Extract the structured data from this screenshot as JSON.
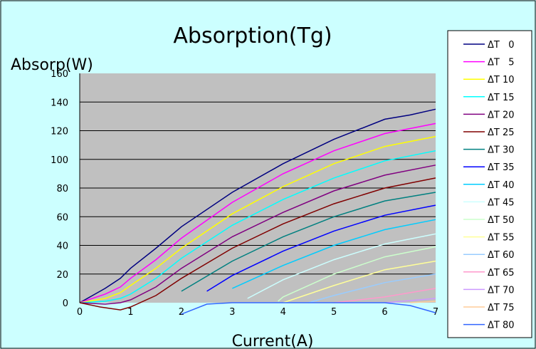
{
  "chart_data": {
    "type": "line",
    "title": "Absorption(Tg)",
    "xlabel": "Current(A)",
    "ylabel": "Absorp(W)",
    "xlim": [
      0,
      7
    ],
    "ylim": [
      0,
      160
    ],
    "xticks": [
      0,
      1,
      2,
      3,
      4,
      5,
      6,
      7
    ],
    "yticks": [
      0,
      20,
      40,
      60,
      80,
      100,
      120,
      140,
      160
    ],
    "grid": "horizontal",
    "legend_position": "right",
    "plot_background": "#c0c0c0",
    "series": [
      {
        "name": "ΔT   0",
        "color": "#000080",
        "x": [
          0,
          0.5,
          0.8,
          1,
          1.5,
          2,
          3,
          4,
          5,
          6,
          6.5,
          7
        ],
        "y": [
          0,
          10,
          17,
          24,
          38,
          53,
          77,
          97,
          114,
          128,
          131,
          135
        ]
      },
      {
        "name": "ΔT   5",
        "color": "#ff00ff",
        "x": [
          0,
          0.5,
          0.8,
          1,
          1.5,
          2,
          3,
          4,
          5,
          6,
          7
        ],
        "y": [
          0,
          6,
          11,
          17,
          30,
          45,
          70,
          90,
          106,
          118,
          125
        ]
      },
      {
        "name": "ΔT 10",
        "color": "#ffff00",
        "x": [
          0,
          0.5,
          0.8,
          1,
          1.5,
          2,
          3,
          4,
          5,
          6,
          7
        ],
        "y": [
          0,
          3,
          7,
          12,
          24,
          38,
          62,
          81,
          97,
          109,
          116
        ]
      },
      {
        "name": "ΔT 15",
        "color": "#00ffff",
        "x": [
          0,
          0.5,
          0.8,
          1,
          1.5,
          2,
          3,
          4,
          5,
          6,
          7
        ],
        "y": [
          0,
          1,
          3,
          6,
          17,
          31,
          54,
          72,
          87,
          99,
          106
        ]
      },
      {
        "name": "ΔT 20",
        "color": "#800080",
        "x": [
          0,
          0.5,
          0.8,
          1,
          1.5,
          2,
          3,
          4,
          5,
          6,
          7
        ],
        "y": [
          0,
          -1,
          0,
          2,
          11,
          24,
          46,
          63,
          78,
          89,
          96
        ]
      },
      {
        "name": "ΔT 25",
        "color": "#800000",
        "x": [
          0,
          0.4,
          0.8,
          1,
          1.5,
          2,
          3,
          4,
          5,
          6,
          7
        ],
        "y": [
          0,
          -3,
          -5,
          -3,
          5,
          17,
          38,
          55,
          69,
          80,
          87
        ]
      },
      {
        "name": "ΔT 30",
        "color": "#008080",
        "x": [
          2,
          3,
          4,
          5,
          6,
          7
        ],
        "y": [
          8,
          29,
          46,
          60,
          71,
          77
        ]
      },
      {
        "name": "ΔT 35",
        "color": "#0000ff",
        "x": [
          2.5,
          3,
          4,
          5,
          6,
          7
        ],
        "y": [
          8,
          19,
          36,
          50,
          61,
          68
        ]
      },
      {
        "name": "ΔT 40",
        "color": "#00ccff",
        "x": [
          3,
          4,
          5,
          6,
          7
        ],
        "y": [
          10,
          26,
          40,
          51,
          58
        ]
      },
      {
        "name": "ΔT 45",
        "color": "#ccffff",
        "x": [
          3.3,
          4,
          5,
          6,
          7
        ],
        "y": [
          3,
          16,
          30,
          41,
          48
        ]
      },
      {
        "name": "ΔT 50",
        "color": "#ccffcc",
        "x": [
          3.9,
          4,
          5,
          6,
          7
        ],
        "y": [
          1,
          4,
          20,
          32,
          39
        ]
      },
      {
        "name": "ΔT 55",
        "color": "#ffff99",
        "x": [
          4,
          5,
          6,
          7
        ],
        "y": [
          0,
          12,
          23,
          29
        ]
      },
      {
        "name": "ΔT 60",
        "color": "#99ccff",
        "x": [
          4.5,
          5,
          6,
          7
        ],
        "y": [
          0,
          5,
          14,
          20
        ]
      },
      {
        "name": "ΔT 65",
        "color": "#ff99cc",
        "x": [
          5,
          6,
          7
        ],
        "y": [
          0,
          4,
          10
        ]
      },
      {
        "name": "ΔT 70",
        "color": "#cc99ff",
        "x": [
          6,
          7
        ],
        "y": [
          0,
          3
        ]
      },
      {
        "name": "ΔT 75",
        "color": "#ffcc99",
        "x": [
          6.5,
          7
        ],
        "y": [
          0,
          1
        ]
      },
      {
        "name": "ΔT 80",
        "color": "#3366ff",
        "x": [
          2,
          2.5,
          3,
          4,
          5,
          6,
          6.5,
          7
        ],
        "y": [
          -8,
          -1,
          0,
          0,
          0,
          0,
          -2,
          -7
        ]
      }
    ]
  }
}
